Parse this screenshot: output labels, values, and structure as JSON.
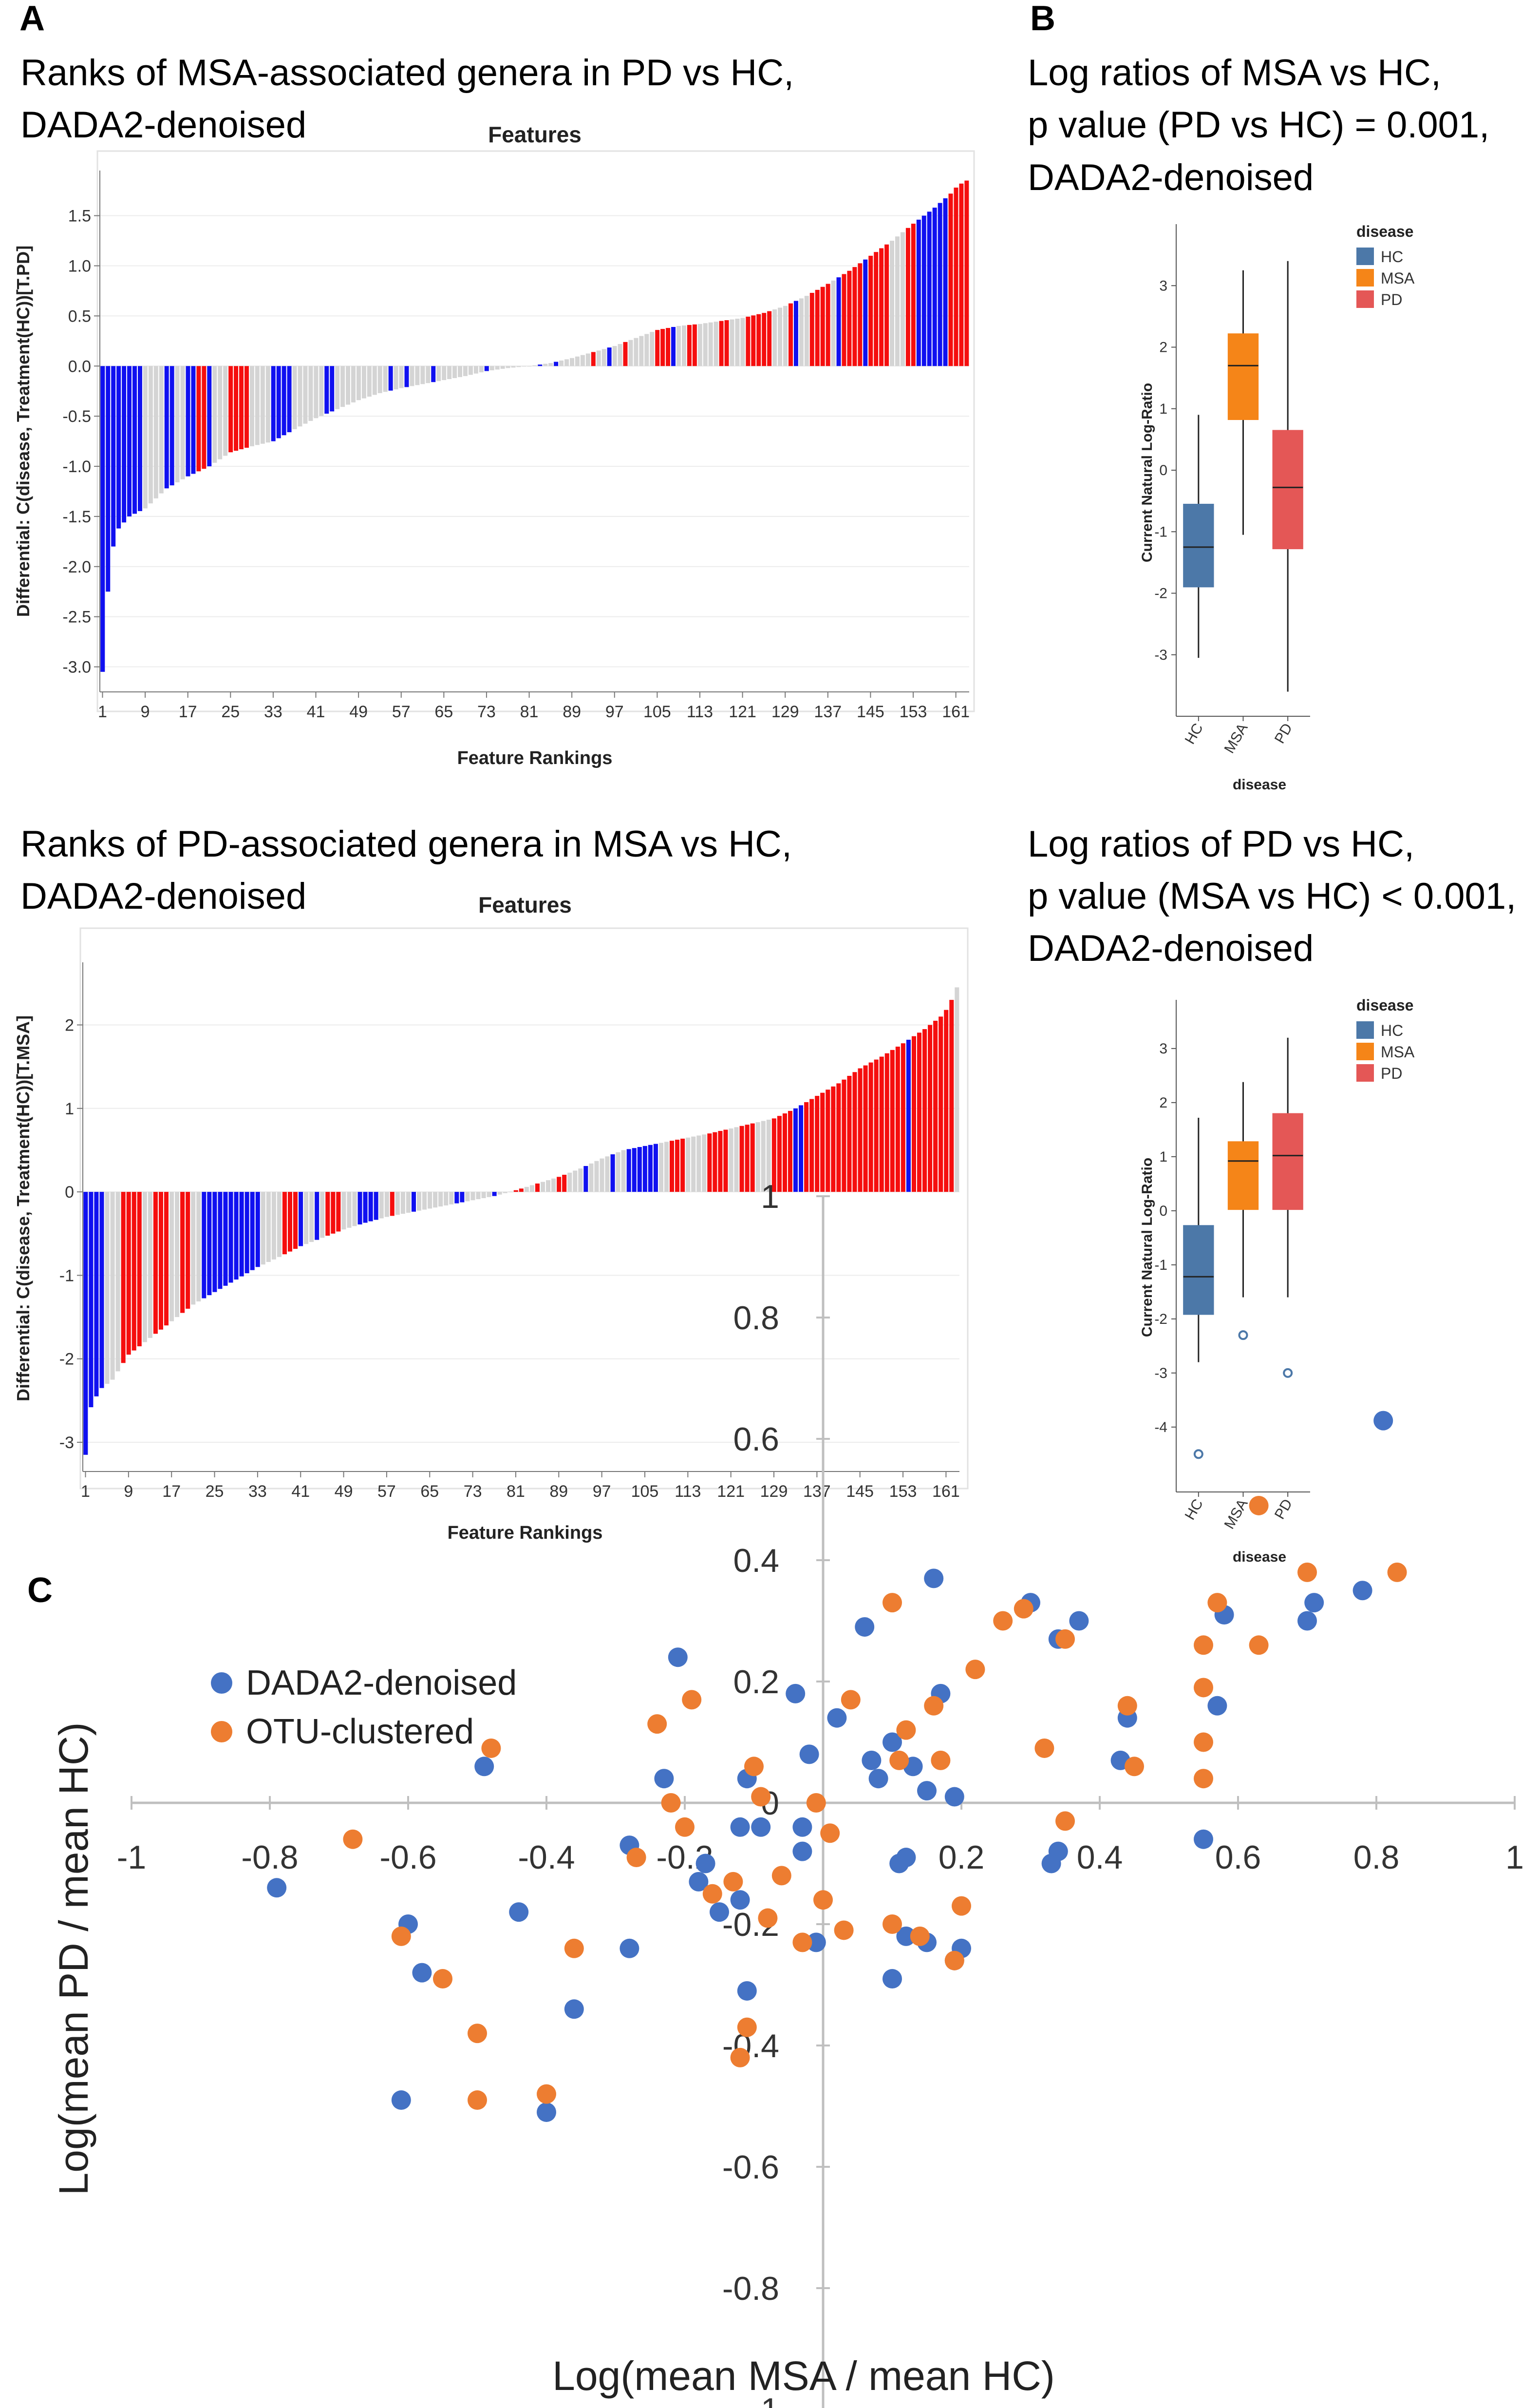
{
  "panels": {
    "a_label": "A",
    "b_label": "B",
    "c_label": "C"
  },
  "captions": {
    "a1_line1": "Ranks of MSA-associated genera in PD vs HC,",
    "a1_line2": "DADA2-denoised",
    "a2_line1": "Ranks of PD-associated genera in MSA vs HC,",
    "a2_line2": "DADA2-denoised",
    "b1_line1": "Log ratios of MSA vs HC,",
    "b1_line2": "p value (PD vs HC) = 0.001,",
    "b1_line3": "DADA2-denoised",
    "b2_line1": "Log ratios of PD vs HC,",
    "b2_line2": "p value (MSA vs HC) < 0.001,",
    "b2_line3": "DADA2-denoised"
  },
  "colors": {
    "red": "#f50e0e",
    "blue": "#1010f0",
    "gray": "#d4d4d4",
    "hc": "#4c78a8",
    "msa": "#f58518",
    "pd": "#e45756",
    "dada2": "#4472c4",
    "otu": "#ed7d31"
  },
  "chart_data": [
    {
      "id": "a1",
      "type": "bar",
      "title": "Features",
      "xlabel": "Feature Rankings",
      "ylabel": "Differential: C(disease, Treatment(HC))[T.PD]",
      "n_features": 163,
      "x_ticks": [
        "1",
        "9",
        "17",
        "25",
        "33",
        "41",
        "49",
        "57",
        "65",
        "73",
        "81",
        "89",
        "97",
        "105",
        "113",
        "121",
        "129",
        "137",
        "145",
        "153",
        "161"
      ],
      "ylim": [
        -3.25,
        1.95
      ],
      "y_ticks": [
        "-3.0",
        "-2.5",
        "-2.0",
        "-1.5",
        "-1.0",
        "-0.5",
        "0.0",
        "0.5",
        "1.0",
        "1.5"
      ],
      "anchors": [
        [
          1,
          -3.05
        ],
        [
          2,
          -2.25
        ],
        [
          3,
          -1.8
        ],
        [
          4,
          -1.62
        ],
        [
          6,
          -1.5
        ],
        [
          9,
          -1.42
        ],
        [
          13,
          -1.22
        ],
        [
          17,
          -1.1
        ],
        [
          21,
          -1.0
        ],
        [
          25,
          -0.86
        ],
        [
          29,
          -0.8
        ],
        [
          33,
          -0.75
        ],
        [
          37,
          -0.63
        ],
        [
          41,
          -0.52
        ],
        [
          45,
          -0.43
        ],
        [
          49,
          -0.34
        ],
        [
          53,
          -0.27
        ],
        [
          57,
          -0.22
        ],
        [
          61,
          -0.18
        ],
        [
          65,
          -0.14
        ],
        [
          69,
          -0.1
        ],
        [
          73,
          -0.05
        ],
        [
          77,
          -0.02
        ],
        [
          81,
          0.0
        ],
        [
          85,
          0.03
        ],
        [
          89,
          0.08
        ],
        [
          93,
          0.14
        ],
        [
          97,
          0.2
        ],
        [
          101,
          0.28
        ],
        [
          105,
          0.36
        ],
        [
          109,
          0.4
        ],
        [
          113,
          0.42
        ],
        [
          117,
          0.45
        ],
        [
          121,
          0.48
        ],
        [
          125,
          0.53
        ],
        [
          129,
          0.6
        ],
        [
          133,
          0.7
        ],
        [
          137,
          0.82
        ],
        [
          141,
          0.95
        ],
        [
          145,
          1.1
        ],
        [
          149,
          1.25
        ],
        [
          153,
          1.42
        ],
        [
          157,
          1.58
        ],
        [
          160,
          1.72
        ],
        [
          161,
          1.78
        ],
        [
          162,
          1.82
        ],
        [
          163,
          1.85
        ]
      ],
      "color_pattern": "BBBBBBBBGGGGBBGGBBRRBGGGRRRRGGGGBBBBGGGGGGBBGGGGGGGGGGBGGBGGGGBGGGGGGGGGBGGGGGGGGGBGGBGGGGGGRGGBGGRGGGGGRRRBGGRRGGGGRRGGGRRRRRGGGRBGGRRRRGBRRRRBRRRRGGGRRBBBBBBRRRR"
    },
    {
      "id": "a2",
      "type": "bar",
      "title": "Features",
      "xlabel": "Feature Rankings",
      "ylabel": "Differential: C(disease, Treatment(HC))[T.MSA]",
      "n_features": 163,
      "x_ticks": [
        "1",
        "9",
        "17",
        "25",
        "33",
        "41",
        "49",
        "57",
        "65",
        "73",
        "81",
        "89",
        "97",
        "105",
        "113",
        "121",
        "129",
        "137",
        "145",
        "153",
        "161"
      ],
      "ylim": [
        -3.35,
        2.75
      ],
      "y_ticks": [
        "-3",
        "-2",
        "-1",
        "0",
        "1",
        "2"
      ],
      "anchors": [
        [
          1,
          -3.15
        ],
        [
          2,
          -2.58
        ],
        [
          3,
          -2.45
        ],
        [
          4,
          -2.35
        ],
        [
          6,
          -2.25
        ],
        [
          8,
          -2.05
        ],
        [
          9,
          -1.95
        ],
        [
          13,
          -1.75
        ],
        [
          17,
          -1.55
        ],
        [
          21,
          -1.35
        ],
        [
          25,
          -1.2
        ],
        [
          29,
          -1.05
        ],
        [
          33,
          -0.9
        ],
        [
          37,
          -0.78
        ],
        [
          41,
          -0.65
        ],
        [
          45,
          -0.55
        ],
        [
          49,
          -0.45
        ],
        [
          53,
          -0.37
        ],
        [
          57,
          -0.3
        ],
        [
          61,
          -0.25
        ],
        [
          65,
          -0.2
        ],
        [
          69,
          -0.15
        ],
        [
          73,
          -0.1
        ],
        [
          77,
          -0.05
        ],
        [
          81,
          0.02
        ],
        [
          85,
          0.1
        ],
        [
          89,
          0.18
        ],
        [
          93,
          0.28
        ],
        [
          97,
          0.4
        ],
        [
          101,
          0.5
        ],
        [
          105,
          0.55
        ],
        [
          109,
          0.6
        ],
        [
          113,
          0.65
        ],
        [
          117,
          0.7
        ],
        [
          121,
          0.76
        ],
        [
          125,
          0.82
        ],
        [
          129,
          0.88
        ],
        [
          133,
          1.0
        ],
        [
          137,
          1.15
        ],
        [
          141,
          1.3
        ],
        [
          145,
          1.48
        ],
        [
          149,
          1.62
        ],
        [
          153,
          1.78
        ],
        [
          157,
          1.95
        ],
        [
          159,
          2.05
        ],
        [
          160,
          2.1
        ],
        [
          161,
          2.18
        ],
        [
          162,
          2.3
        ],
        [
          163,
          2.45
        ]
      ],
      "color_pattern": "BBBBGGGRRRRGGRRRGGRRGGBBBBBBBBBBBGGGGRRRBGGBGRRRGGGBBBBGGRGGGBGGGGGGGBBGGGGGBGGGRRGGRGGGRRGGGBGGGGBGGBBBBBBGGRRRGGGGRRRRGGRRRGGGRRRRBBRRRRRRRRRRRRRRRRRRRBRRRRRRRR"
    },
    {
      "id": "b1",
      "type": "box",
      "xlabel": "disease",
      "ylabel": "Current Natural Log-Ratio",
      "ylim": [
        -4.0,
        4.0
      ],
      "y_ticks": [
        "-3",
        "-2",
        "-1",
        "0",
        "1",
        "2",
        "3"
      ],
      "legend_title": "disease",
      "groups": [
        {
          "name": "HC",
          "min": -3.05,
          "q1": -1.9,
          "median": -1.25,
          "q3": -0.55,
          "max": 0.9,
          "outliers": []
        },
        {
          "name": "MSA",
          "min": -1.05,
          "q1": 0.82,
          "median": 1.7,
          "q3": 2.22,
          "max": 3.25,
          "outliers": []
        },
        {
          "name": "PD",
          "min": -3.6,
          "q1": -1.28,
          "median": -0.28,
          "q3": 0.65,
          "max": 3.4,
          "outliers": []
        }
      ]
    },
    {
      "id": "b2",
      "type": "box",
      "xlabel": "disease",
      "ylabel": "Current Natural Log-Ratio",
      "ylim": [
        -5.2,
        3.9
      ],
      "y_ticks": [
        "-4",
        "-3",
        "-2",
        "-1",
        "0",
        "1",
        "2",
        "3"
      ],
      "legend_title": "disease",
      "groups": [
        {
          "name": "HC",
          "min": -2.8,
          "q1": -1.92,
          "median": -1.22,
          "q3": -0.27,
          "max": 1.72,
          "outliers": [
            -4.5
          ]
        },
        {
          "name": "MSA",
          "min": -1.6,
          "q1": 0.02,
          "median": 0.92,
          "q3": 1.28,
          "max": 2.38,
          "outliers": [
            -2.3
          ]
        },
        {
          "name": "PD",
          "min": -1.6,
          "q1": 0.02,
          "median": 1.02,
          "q3": 1.8,
          "max": 3.2,
          "outliers": [
            -3.0
          ]
        }
      ]
    },
    {
      "id": "c",
      "type": "scatter",
      "xlabel": "Log(mean MSA / mean HC)",
      "ylabel": "Log(mean PD / mean HC)",
      "xlim": [
        -1,
        1
      ],
      "ylim": [
        -1,
        1
      ],
      "x_ticks": [
        "-1",
        "-0.8",
        "-0.6",
        "-0.4",
        "-0.2",
        "0",
        "0.2",
        "0.4",
        "0.6",
        "0.8",
        "1"
      ],
      "y_ticks": [
        "-1",
        "-0.8",
        "-0.6",
        "-0.4",
        "-0.2",
        "0",
        "0.2",
        "0.4",
        "0.6",
        "0.8",
        "1"
      ],
      "series": [
        {
          "name": "DADA2-denoised",
          "points": [
            [
              -0.79,
              -0.14
            ],
            [
              -0.6,
              -0.2
            ],
            [
              -0.58,
              -0.28
            ],
            [
              -0.61,
              -0.49
            ],
            [
              -0.49,
              0.06
            ],
            [
              -0.44,
              -0.18
            ],
            [
              -0.4,
              -0.51
            ],
            [
              -0.36,
              -0.34
            ],
            [
              -0.28,
              -0.24
            ],
            [
              -0.28,
              -0.07
            ],
            [
              -0.23,
              0.04
            ],
            [
              -0.21,
              0.24
            ],
            [
              -0.18,
              -0.13
            ],
            [
              -0.17,
              -0.1
            ],
            [
              -0.15,
              -0.18
            ],
            [
              -0.12,
              -0.16
            ],
            [
              -0.12,
              -0.04
            ],
            [
              -0.11,
              -0.31
            ],
            [
              -0.11,
              0.04
            ],
            [
              -0.09,
              -0.04
            ],
            [
              -0.04,
              0.18
            ],
            [
              -0.03,
              -0.08
            ],
            [
              -0.03,
              -0.04
            ],
            [
              -0.02,
              0.08
            ],
            [
              -0.01,
              -0.23
            ],
            [
              0.02,
              0.14
            ],
            [
              0.06,
              0.29
            ],
            [
              0.07,
              0.07
            ],
            [
              0.08,
              0.04
            ],
            [
              0.1,
              -0.29
            ],
            [
              0.1,
              0.1
            ],
            [
              0.11,
              -0.1
            ],
            [
              0.12,
              -0.09
            ],
            [
              0.12,
              -0.22
            ],
            [
              0.13,
              0.06
            ],
            [
              0.15,
              0.02
            ],
            [
              0.15,
              -0.23
            ],
            [
              0.16,
              0.37
            ],
            [
              0.17,
              0.18
            ],
            [
              0.19,
              -0.26
            ],
            [
              0.19,
              0.01
            ],
            [
              0.2,
              -0.24
            ],
            [
              0.3,
              0.33
            ],
            [
              0.33,
              -0.1
            ],
            [
              0.34,
              -0.08
            ],
            [
              0.34,
              0.27
            ],
            [
              0.37,
              0.3
            ],
            [
              0.43,
              0.07
            ],
            [
              0.44,
              0.14
            ],
            [
              0.55,
              -0.06
            ],
            [
              0.57,
              0.16
            ],
            [
              0.58,
              0.31
            ],
            [
              0.7,
              0.3
            ],
            [
              0.71,
              0.33
            ],
            [
              0.78,
              0.35
            ],
            [
              0.81,
              0.63
            ]
          ]
        },
        {
          "name": "OTU-clustered",
          "points": [
            [
              -0.68,
              -0.06
            ],
            [
              -0.61,
              -0.22
            ],
            [
              -0.55,
              -0.29
            ],
            [
              -0.5,
              -0.38
            ],
            [
              -0.5,
              -0.49
            ],
            [
              -0.48,
              0.09
            ],
            [
              -0.4,
              -0.48
            ],
            [
              -0.36,
              -0.24
            ],
            [
              -0.27,
              -0.09
            ],
            [
              -0.24,
              0.13
            ],
            [
              -0.22,
              0.0
            ],
            [
              -0.2,
              -0.04
            ],
            [
              -0.19,
              0.17
            ],
            [
              -0.16,
              -0.15
            ],
            [
              -0.13,
              -0.13
            ],
            [
              -0.12,
              -0.42
            ],
            [
              -0.11,
              -0.37
            ],
            [
              -0.1,
              0.06
            ],
            [
              -0.09,
              0.01
            ],
            [
              -0.08,
              -0.19
            ],
            [
              -0.06,
              -0.12
            ],
            [
              -0.03,
              -0.23
            ],
            [
              -0.01,
              0.0
            ],
            [
              0.0,
              -0.16
            ],
            [
              0.01,
              -0.05
            ],
            [
              0.03,
              -0.21
            ],
            [
              0.04,
              0.17
            ],
            [
              0.1,
              -0.2
            ],
            [
              0.1,
              0.33
            ],
            [
              0.11,
              0.07
            ],
            [
              0.12,
              0.12
            ],
            [
              0.14,
              -0.22
            ],
            [
              0.16,
              0.16
            ],
            [
              0.17,
              0.07
            ],
            [
              0.19,
              -0.26
            ],
            [
              0.2,
              -0.17
            ],
            [
              0.22,
              0.22
            ],
            [
              0.26,
              0.3
            ],
            [
              0.29,
              0.32
            ],
            [
              0.32,
              0.09
            ],
            [
              0.35,
              0.27
            ],
            [
              0.35,
              -0.03
            ],
            [
              0.44,
              0.16
            ],
            [
              0.45,
              0.06
            ],
            [
              0.55,
              0.04
            ],
            [
              0.55,
              0.1
            ],
            [
              0.55,
              0.19
            ],
            [
              0.55,
              0.26
            ],
            [
              0.57,
              0.33
            ],
            [
              0.63,
              0.49
            ],
            [
              0.63,
              0.26
            ],
            [
              0.7,
              0.38
            ],
            [
              0.83,
              0.38
            ]
          ]
        }
      ]
    }
  ]
}
